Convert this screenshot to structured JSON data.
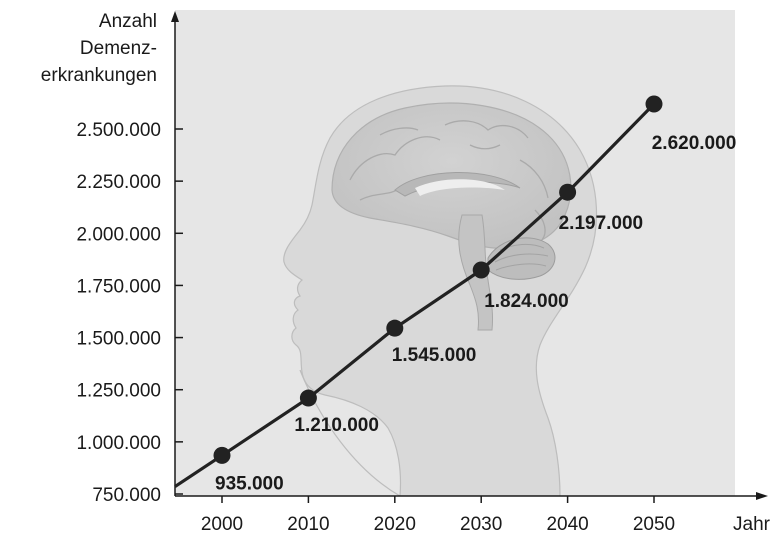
{
  "chart_data": {
    "type": "line",
    "title": "",
    "ylabel_lines": [
      "Anzahl",
      "Demenz-",
      "erkrankungen"
    ],
    "xlabel": "Jahr",
    "x": [
      2000,
      2010,
      2020,
      2030,
      2040,
      2050
    ],
    "xlim": [
      1995,
      2060
    ],
    "ylim": [
      750000,
      2600000
    ],
    "x_ticks": [
      {
        "value": 2000,
        "label": "2000"
      },
      {
        "value": 2010,
        "label": "2010"
      },
      {
        "value": 2020,
        "label": "2020"
      },
      {
        "value": 2030,
        "label": "2030"
      },
      {
        "value": 2040,
        "label": "2040"
      },
      {
        "value": 2050,
        "label": "2050"
      }
    ],
    "y_ticks": [
      {
        "value": 750000,
        "label": "750.000"
      },
      {
        "value": 1000000,
        "label": "1.000.000"
      },
      {
        "value": 1250000,
        "label": "1.250.000"
      },
      {
        "value": 1500000,
        "label": "1.500.000"
      },
      {
        "value": 1750000,
        "label": "1.750.000"
      },
      {
        "value": 2000000,
        "label": "2.000.000"
      },
      {
        "value": 2250000,
        "label": "2.250.000"
      },
      {
        "value": 2500000,
        "label": "2.500.000"
      }
    ],
    "series": [
      {
        "values": [
          935000,
          1210000,
          1545000,
          1824000,
          2197000,
          2620000
        ],
        "labels": [
          "935.000",
          "1.210.000",
          "1.545.000",
          "1.824.000",
          "2.197.000",
          "2.620.000"
        ]
      }
    ],
    "grid": false,
    "legend": "none",
    "colors": {
      "background_panel": "#e6e6e6",
      "line": "#222222",
      "markers": "#222222",
      "illustration": "#c8c8c8"
    },
    "background_illustration": "head-brain-illustration"
  }
}
